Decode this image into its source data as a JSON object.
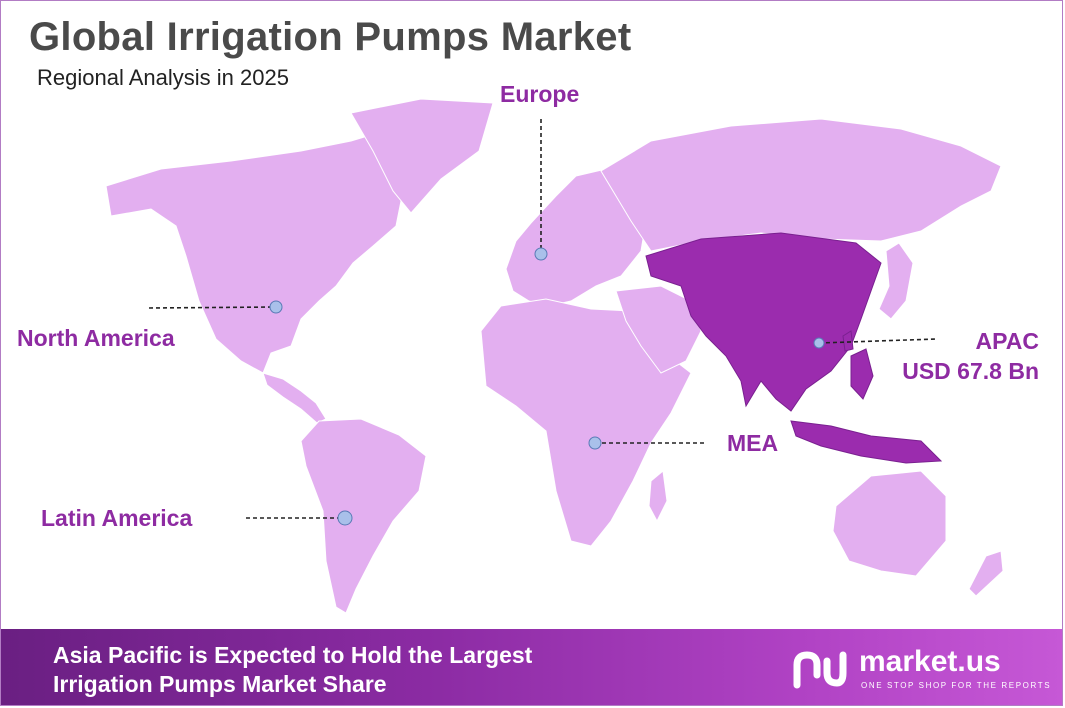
{
  "title": "Global Irrigation Pumps Market",
  "subtitle": "Regional Analysis in 2025",
  "regions": {
    "europe": "Europe",
    "north_america": "North America",
    "latin_america": "Latin America",
    "mea": "MEA",
    "apac": "APAC",
    "apac_value": "USD 67.8 Bn"
  },
  "banner": {
    "line1": "Asia Pacific is Expected to Hold the Largest",
    "line2": "Irrigation Pumps Market Share"
  },
  "brand": {
    "name": "market.us",
    "tagline": "ONE STOP SHOP FOR THE REPORTS"
  },
  "colors": {
    "land": "#e3aff0",
    "highlight": "#9b2cae",
    "accent": "#8e2ba2",
    "marker": "#a9c0ea"
  }
}
